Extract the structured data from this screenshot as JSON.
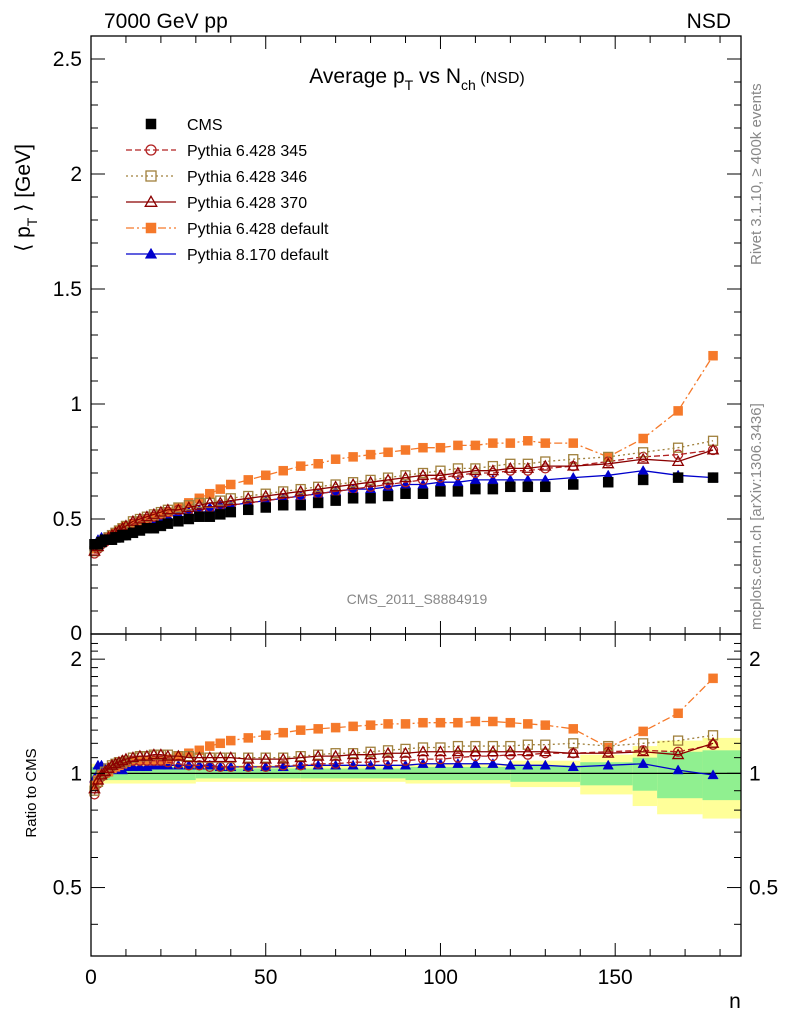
{
  "header": {
    "left": "7000 GeV pp",
    "right": "NSD"
  },
  "side_text": {
    "rivet": "Rivet 3.1.10, ≥ 400k events",
    "mcplots": "mcplots.cern.ch [arXiv:1306.3436]"
  },
  "chart_data": [
    {
      "type": "line",
      "panel": "main",
      "title_main": "Average p",
      "title_sub1": "T",
      "title_mid": " vs N",
      "title_sub2": "ch",
      "title_suffix": " (NSD)",
      "ylabel_pre": "⟨ p",
      "ylabel_sub": "T",
      "ylabel_post": " ⟩ [GeV]",
      "watermark": "CMS_2011_S8884919",
      "xlim": [
        0,
        186
      ],
      "ylim": [
        0,
        2.6
      ],
      "yticks": [
        {
          "v": 0.5,
          "label": "0.5"
        },
        {
          "v": 1,
          "label": "1"
        },
        {
          "v": 1.5,
          "label": "1.5"
        },
        {
          "v": 2,
          "label": "2"
        },
        {
          "v": 2.5,
          "label": "2.5"
        }
      ],
      "yticks_extra_label": "0",
      "legend_position": "top-left",
      "series": [
        {
          "name": "CMS",
          "color": "#000000",
          "marker": "filled-square",
          "x": [
            1,
            2,
            3,
            4,
            5,
            6,
            7,
            8,
            9,
            10,
            12,
            14,
            16,
            18,
            20,
            22,
            25,
            28,
            31,
            34,
            37,
            40,
            45,
            50,
            55,
            60,
            65,
            70,
            75,
            80,
            85,
            90,
            95,
            100,
            105,
            110,
            115,
            120,
            125,
            130,
            138,
            148,
            158,
            168,
            178
          ],
          "y": [
            0.39,
            0.39,
            0.4,
            0.41,
            0.41,
            0.41,
            0.42,
            0.42,
            0.43,
            0.43,
            0.44,
            0.45,
            0.46,
            0.46,
            0.47,
            0.48,
            0.49,
            0.5,
            0.51,
            0.51,
            0.52,
            0.53,
            0.54,
            0.55,
            0.56,
            0.56,
            0.57,
            0.58,
            0.59,
            0.59,
            0.6,
            0.61,
            0.61,
            0.62,
            0.62,
            0.63,
            0.63,
            0.64,
            0.64,
            0.64,
            0.65,
            0.66,
            0.67,
            0.68,
            0.68
          ]
        },
        {
          "name": "Pythia 6.428 345",
          "color": "#b22222",
          "marker": "open-circle",
          "dash": "6,3",
          "x": [
            1,
            2,
            3,
            4,
            5,
            6,
            7,
            8,
            9,
            10,
            12,
            14,
            16,
            18,
            20,
            22,
            25,
            28,
            31,
            34,
            37,
            40,
            45,
            50,
            55,
            60,
            65,
            70,
            75,
            80,
            85,
            90,
            95,
            100,
            105,
            110,
            115,
            120,
            125,
            130,
            138,
            148,
            158,
            168,
            178
          ],
          "y": [
            0.35,
            0.37,
            0.39,
            0.4,
            0.41,
            0.42,
            0.43,
            0.44,
            0.45,
            0.46,
            0.48,
            0.49,
            0.5,
            0.51,
            0.52,
            0.53,
            0.54,
            0.54,
            0.55,
            0.55,
            0.56,
            0.56,
            0.57,
            0.58,
            0.59,
            0.6,
            0.61,
            0.62,
            0.63,
            0.64,
            0.65,
            0.66,
            0.67,
            0.68,
            0.69,
            0.7,
            0.7,
            0.71,
            0.71,
            0.72,
            0.73,
            0.75,
            0.77,
            0.78,
            0.8
          ]
        },
        {
          "name": "Pythia 6.428 346",
          "color": "#a0803c",
          "marker": "open-square",
          "dash": "2,3",
          "x": [
            1,
            2,
            3,
            4,
            5,
            6,
            7,
            8,
            9,
            10,
            12,
            14,
            16,
            18,
            20,
            22,
            25,
            28,
            31,
            34,
            37,
            40,
            45,
            50,
            55,
            60,
            65,
            70,
            75,
            80,
            85,
            90,
            95,
            100,
            105,
            110,
            115,
            120,
            125,
            130,
            138,
            148,
            158,
            168,
            178
          ],
          "y": [
            0.36,
            0.38,
            0.4,
            0.41,
            0.42,
            0.43,
            0.44,
            0.45,
            0.46,
            0.47,
            0.49,
            0.5,
            0.51,
            0.52,
            0.53,
            0.54,
            0.55,
            0.56,
            0.57,
            0.57,
            0.58,
            0.59,
            0.6,
            0.61,
            0.62,
            0.63,
            0.64,
            0.65,
            0.66,
            0.67,
            0.68,
            0.69,
            0.7,
            0.71,
            0.72,
            0.72,
            0.73,
            0.74,
            0.74,
            0.75,
            0.76,
            0.77,
            0.79,
            0.81,
            0.84
          ]
        },
        {
          "name": "Pythia 6.428 370",
          "color": "#8b0000",
          "marker": "open-triangle",
          "dash": "",
          "x": [
            1,
            2,
            3,
            4,
            5,
            6,
            7,
            8,
            9,
            10,
            12,
            14,
            16,
            18,
            20,
            22,
            25,
            28,
            31,
            34,
            37,
            40,
            45,
            50,
            55,
            60,
            65,
            70,
            75,
            80,
            85,
            90,
            95,
            100,
            105,
            110,
            115,
            120,
            125,
            130,
            138,
            148,
            158,
            168,
            178
          ],
          "y": [
            0.36,
            0.38,
            0.4,
            0.41,
            0.42,
            0.43,
            0.44,
            0.45,
            0.46,
            0.47,
            0.49,
            0.5,
            0.51,
            0.52,
            0.53,
            0.54,
            0.54,
            0.55,
            0.56,
            0.57,
            0.57,
            0.58,
            0.59,
            0.6,
            0.61,
            0.62,
            0.63,
            0.64,
            0.65,
            0.66,
            0.67,
            0.68,
            0.69,
            0.69,
            0.7,
            0.71,
            0.71,
            0.72,
            0.72,
            0.73,
            0.73,
            0.74,
            0.76,
            0.75,
            0.8
          ]
        },
        {
          "name": "Pythia 6.428 default",
          "color": "#f5792a",
          "marker": "filled-square",
          "dash": "8,3,2,3",
          "x": [
            1,
            2,
            3,
            4,
            5,
            6,
            7,
            8,
            9,
            10,
            12,
            14,
            16,
            18,
            20,
            22,
            25,
            28,
            31,
            34,
            37,
            40,
            45,
            50,
            55,
            60,
            65,
            70,
            75,
            80,
            85,
            90,
            95,
            100,
            105,
            110,
            115,
            120,
            125,
            130,
            138,
            148,
            158,
            168,
            178
          ],
          "y": [
            0.37,
            0.38,
            0.4,
            0.41,
            0.42,
            0.43,
            0.44,
            0.45,
            0.46,
            0.47,
            0.48,
            0.49,
            0.5,
            0.51,
            0.52,
            0.53,
            0.55,
            0.57,
            0.59,
            0.61,
            0.63,
            0.65,
            0.67,
            0.69,
            0.71,
            0.73,
            0.74,
            0.76,
            0.77,
            0.78,
            0.79,
            0.8,
            0.81,
            0.81,
            0.82,
            0.82,
            0.83,
            0.83,
            0.84,
            0.83,
            0.83,
            0.77,
            0.85,
            0.97,
            1.21
          ]
        },
        {
          "name": "Pythia 8.170 default",
          "color": "#0000cc",
          "marker": "filled-triangle",
          "dash": "",
          "x": [
            1,
            2,
            3,
            4,
            5,
            6,
            7,
            8,
            9,
            10,
            12,
            14,
            16,
            18,
            20,
            22,
            25,
            28,
            31,
            34,
            37,
            40,
            45,
            50,
            55,
            60,
            65,
            70,
            75,
            80,
            85,
            90,
            95,
            100,
            105,
            110,
            115,
            120,
            125,
            130,
            138,
            148,
            158,
            168,
            178
          ],
          "y": [
            0.38,
            0.41,
            0.42,
            0.42,
            0.42,
            0.42,
            0.43,
            0.43,
            0.44,
            0.45,
            0.46,
            0.47,
            0.48,
            0.49,
            0.5,
            0.51,
            0.52,
            0.53,
            0.54,
            0.55,
            0.56,
            0.56,
            0.57,
            0.58,
            0.59,
            0.6,
            0.61,
            0.62,
            0.63,
            0.63,
            0.64,
            0.65,
            0.65,
            0.66,
            0.66,
            0.67,
            0.67,
            0.67,
            0.67,
            0.67,
            0.68,
            0.69,
            0.71,
            0.69,
            0.68
          ]
        }
      ]
    },
    {
      "type": "line",
      "panel": "ratio",
      "ylabel": "Ratio to CMS",
      "xlabel": "n",
      "xlim": [
        0,
        186
      ],
      "ylim": [
        0.33,
        2.33
      ],
      "log_y": true,
      "xticks": [
        {
          "v": 0,
          "label": "0"
        },
        {
          "v": 50,
          "label": "50"
        },
        {
          "v": 100,
          "label": "100"
        },
        {
          "v": 150,
          "label": "150"
        }
      ],
      "yticks": [
        {
          "v": 0.5,
          "label": "0.5"
        },
        {
          "v": 1,
          "label": "1"
        },
        {
          "v": 2,
          "label": "2"
        }
      ],
      "bands": {
        "x_edges": [
          0,
          30,
          60,
          90,
          120,
          140,
          155,
          162,
          175,
          186
        ],
        "inner": [
          0.04,
          0.03,
          0.03,
          0.04,
          0.05,
          0.07,
          0.1,
          0.14,
          0.15
        ],
        "outer": [
          0.06,
          0.05,
          0.05,
          0.06,
          0.08,
          0.12,
          0.18,
          0.22,
          0.24
        ]
      },
      "series_ref": "main.series",
      "x": [
        1,
        2,
        3,
        4,
        5,
        6,
        7,
        8,
        9,
        10,
        12,
        14,
        16,
        18,
        20,
        22,
        25,
        28,
        31,
        34,
        37,
        40,
        45,
        50,
        55,
        60,
        65,
        70,
        75,
        80,
        85,
        90,
        95,
        100,
        105,
        110,
        115,
        120,
        125,
        130,
        138,
        148,
        158,
        168,
        178
      ],
      "ratios": {
        "Pythia 6.428 345": [
          0.88,
          0.94,
          0.98,
          1.0,
          1.02,
          1.04,
          1.05,
          1.06,
          1.06,
          1.07,
          1.08,
          1.08,
          1.08,
          1.08,
          1.08,
          1.07,
          1.06,
          1.05,
          1.05,
          1.04,
          1.04,
          1.04,
          1.04,
          1.04,
          1.05,
          1.05,
          1.06,
          1.06,
          1.07,
          1.07,
          1.08,
          1.08,
          1.09,
          1.09,
          1.1,
          1.11,
          1.11,
          1.12,
          1.12,
          1.13,
          1.13,
          1.14,
          1.15,
          1.14,
          1.19
        ],
        "Pythia 6.428 346": [
          0.9,
          0.95,
          0.99,
          1.01,
          1.03,
          1.05,
          1.06,
          1.07,
          1.07,
          1.08,
          1.1,
          1.11,
          1.11,
          1.12,
          1.12,
          1.12,
          1.11,
          1.11,
          1.1,
          1.1,
          1.1,
          1.1,
          1.1,
          1.1,
          1.1,
          1.11,
          1.12,
          1.13,
          1.13,
          1.14,
          1.15,
          1.16,
          1.17,
          1.17,
          1.18,
          1.18,
          1.18,
          1.18,
          1.19,
          1.19,
          1.2,
          1.18,
          1.2,
          1.22,
          1.26
        ]
      },
      "ratios_extra": {
        "Pythia 6.428 370": [
          0.91,
          0.96,
          0.99,
          1.01,
          1.03,
          1.05,
          1.06,
          1.07,
          1.08,
          1.09,
          1.1,
          1.11,
          1.11,
          1.12,
          1.12,
          1.11,
          1.11,
          1.1,
          1.1,
          1.1,
          1.1,
          1.1,
          1.09,
          1.09,
          1.09,
          1.1,
          1.11,
          1.11,
          1.12,
          1.12,
          1.13,
          1.13,
          1.14,
          1.14,
          1.14,
          1.14,
          1.14,
          1.14,
          1.14,
          1.14,
          1.13,
          1.13,
          1.14,
          1.12,
          1.2
        ],
        "Pythia 6.428 default": [
          0.93,
          0.96,
          0.99,
          1.0,
          1.01,
          1.03,
          1.04,
          1.05,
          1.06,
          1.07,
          1.08,
          1.08,
          1.08,
          1.08,
          1.08,
          1.09,
          1.11,
          1.13,
          1.15,
          1.18,
          1.2,
          1.22,
          1.24,
          1.26,
          1.28,
          1.3,
          1.31,
          1.32,
          1.33,
          1.34,
          1.35,
          1.35,
          1.36,
          1.36,
          1.36,
          1.37,
          1.37,
          1.36,
          1.35,
          1.34,
          1.31,
          1.17,
          1.29,
          1.44,
          1.78
        ],
        "Pythia 8.170 default": [
          0.97,
          1.05,
          1.05,
          1.03,
          1.03,
          1.02,
          1.03,
          1.03,
          1.02,
          1.04,
          1.04,
          1.04,
          1.04,
          1.05,
          1.05,
          1.05,
          1.05,
          1.05,
          1.05,
          1.05,
          1.04,
          1.04,
          1.04,
          1.04,
          1.04,
          1.05,
          1.05,
          1.05,
          1.05,
          1.05,
          1.05,
          1.05,
          1.06,
          1.06,
          1.06,
          1.06,
          1.06,
          1.05,
          1.05,
          1.05,
          1.04,
          1.05,
          1.06,
          1.02,
          0.99
        ]
      }
    }
  ]
}
